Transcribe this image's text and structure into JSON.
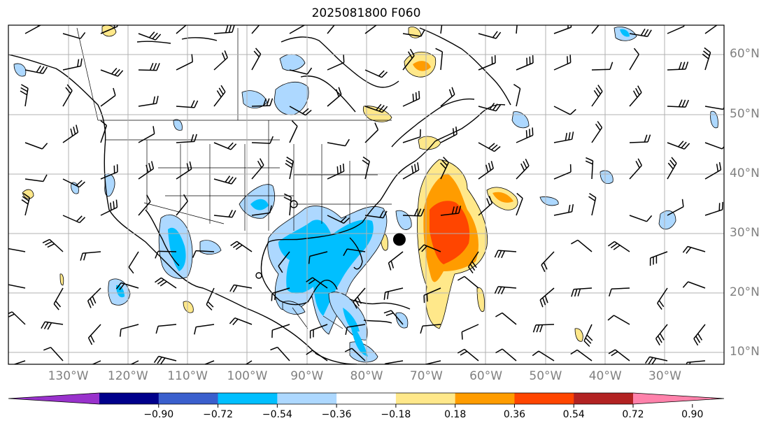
{
  "title": "2025081800 F060",
  "lat_labels": [
    {
      "lat": 60,
      "text": "60°N"
    },
    {
      "lat": 50,
      "text": "50°N"
    },
    {
      "lat": 40,
      "text": "40°N"
    },
    {
      "lat": 30,
      "text": "30°N"
    },
    {
      "lat": 20,
      "text": "20°N"
    },
    {
      "lat": 10,
      "text": "10°N"
    }
  ],
  "lon_labels": [
    {
      "lon": -130,
      "text": "130°W"
    },
    {
      "lon": -120,
      "text": "120°W"
    },
    {
      "lon": -110,
      "text": "110°W"
    },
    {
      "lon": -100,
      "text": "100°W"
    },
    {
      "lon": -90,
      "text": "90°W"
    },
    {
      "lon": -80,
      "text": "80°W"
    },
    {
      "lon": -70,
      "text": "70°W"
    },
    {
      "lon": -60,
      "text": "60°W"
    },
    {
      "lon": -50,
      "text": "50°W"
    },
    {
      "lon": -40,
      "text": "40°W"
    },
    {
      "lon": -30,
      "text": "30°W"
    }
  ],
  "colorbar": {
    "ticks": [
      "−0.90",
      "−0.72",
      "−0.54",
      "−0.36",
      "−0.18",
      "0.18",
      "0.36",
      "0.54",
      "0.72",
      "0.90"
    ],
    "colors": [
      "#9932cc",
      "#00008b",
      "#3a5fcd",
      "#00bfff",
      "#add8ff",
      "#ffffff",
      "#ffe88a",
      "#ff9c00",
      "#ff4500",
      "#b22222",
      "#ff82ab"
    ]
  },
  "storm_marker": {
    "lon": -74.5,
    "lat": 29
  }
}
